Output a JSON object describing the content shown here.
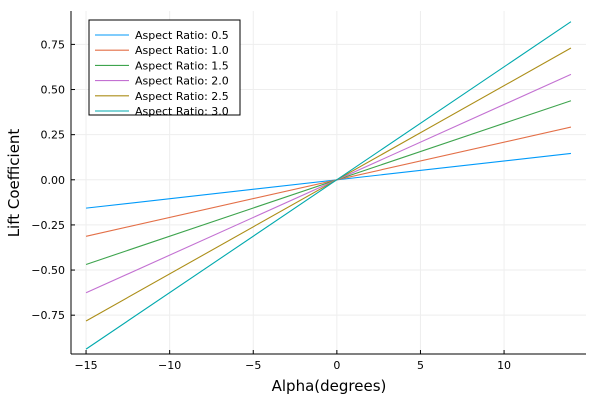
{
  "chart_data": {
    "type": "line",
    "xlabel": "Alpha(degrees)",
    "ylabel": "Lift Coefficient",
    "xlim": [
      -15.9,
      14.9
    ],
    "ylim": [
      -0.965,
      0.935
    ],
    "x_ticks": [
      -15,
      -10,
      -5,
      0,
      5,
      10
    ],
    "x_tick_labels": [
      "−15",
      "−10",
      "−5",
      "0",
      "5",
      "10"
    ],
    "y_ticks": [
      -0.75,
      -0.5,
      -0.25,
      0,
      0.25,
      0.5,
      0.75
    ],
    "y_tick_labels": [
      "−0.75",
      "−0.50",
      "−0.25",
      "0.00",
      "0.25",
      "0.50",
      "0.75"
    ],
    "grid": true,
    "legend_position": "top-left",
    "x": [
      -15,
      14
    ],
    "series": [
      {
        "name": "Aspect Ratio: 0.5",
        "color": "#009AFA",
        "values": [
          -0.157,
          0.146
        ]
      },
      {
        "name": "Aspect Ratio: 1.0",
        "color": "#E36F47",
        "values": [
          -0.313,
          0.292
        ]
      },
      {
        "name": "Aspect Ratio: 1.5",
        "color": "#3EA44E",
        "values": [
          -0.469,
          0.438
        ]
      },
      {
        "name": "Aspect Ratio: 2.0",
        "color": "#C371D2",
        "values": [
          -0.626,
          0.584
        ]
      },
      {
        "name": "Aspect Ratio: 2.5",
        "color": "#AC8E18",
        "values": [
          -0.782,
          0.73
        ]
      },
      {
        "name": "Aspect Ratio: 3.0",
        "color": "#00A9AD",
        "values": [
          -0.938,
          0.876
        ]
      }
    ]
  }
}
